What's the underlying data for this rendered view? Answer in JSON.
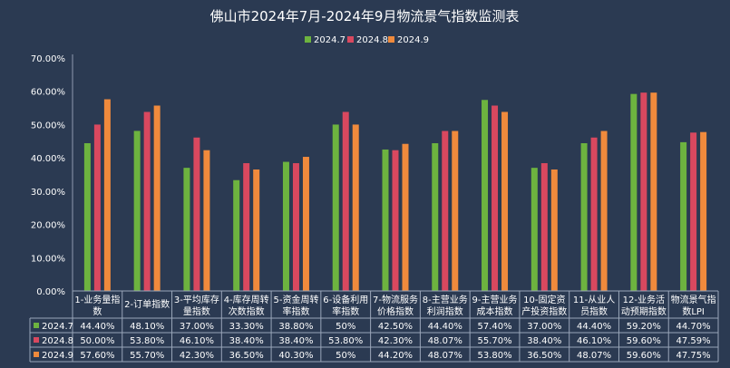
{
  "chart_data": {
    "type": "bar",
    "title": "佛山市2024年7月-2024年9月物流景气指数监测表",
    "ylim": [
      0,
      70
    ],
    "yticks": [
      "0.00%",
      "10.00%",
      "20.00%",
      "30.00%",
      "40.00%",
      "50.00%",
      "60.00%",
      "70.00%"
    ],
    "legend_position": "top",
    "grid": false,
    "categories": [
      [
        "1-业务量指",
        "数"
      ],
      [
        "2-订单指数"
      ],
      [
        "3-平均库存",
        "量指数"
      ],
      [
        "4-库存周转",
        "次数指数"
      ],
      [
        "5-资金周转",
        "率指数"
      ],
      [
        "6-设备利用",
        "率指数"
      ],
      [
        "7-物流服务",
        "价格指数"
      ],
      [
        "8-主营业务",
        "利润指数"
      ],
      [
        "9-主营业务",
        "成本指数"
      ],
      [
        "10-固定资",
        "产投资指数"
      ],
      [
        "11-从业人",
        "员指数"
      ],
      [
        "12-业务活",
        "动预期指数"
      ],
      [
        "物流景气指",
        "数LPI"
      ]
    ],
    "series": [
      {
        "name": "2024.7",
        "color": "#6db33f",
        "values": [
          44.4,
          48.1,
          37.0,
          33.3,
          38.8,
          50,
          42.5,
          44.4,
          57.4,
          37.0,
          44.4,
          59.2,
          44.7
        ],
        "labels": [
          "44.40%",
          "48.10%",
          "37.00%",
          "33.30%",
          "38.80%",
          "50%",
          "42.50%",
          "44.40%",
          "57.40%",
          "37.00%",
          "44.40%",
          "59.20%",
          "44.70%"
        ]
      },
      {
        "name": "2024.8",
        "color": "#d9485f",
        "values": [
          50.0,
          53.8,
          46.1,
          38.4,
          38.4,
          53.8,
          42.3,
          48.07,
          55.7,
          38.4,
          46.1,
          59.6,
          47.59
        ],
        "labels": [
          "50.00%",
          "53.80%",
          "46.10%",
          "38.40%",
          "38.40%",
          "53.80%",
          "42.30%",
          "48.07%",
          "55.70%",
          "38.40%",
          "46.10%",
          "59.60%",
          "47.59%"
        ]
      },
      {
        "name": "2024.9",
        "color": "#f08a3c",
        "values": [
          57.6,
          55.7,
          42.3,
          36.5,
          40.3,
          50,
          44.2,
          48.07,
          53.8,
          36.5,
          48.07,
          59.6,
          47.75
        ],
        "labels": [
          "57.60%",
          "55.70%",
          "42.30%",
          "36.50%",
          "40.30%",
          "50%",
          "44.20%",
          "48.07%",
          "53.80%",
          "36.50%",
          "48.07%",
          "59.60%",
          "47.75%"
        ]
      }
    ]
  }
}
